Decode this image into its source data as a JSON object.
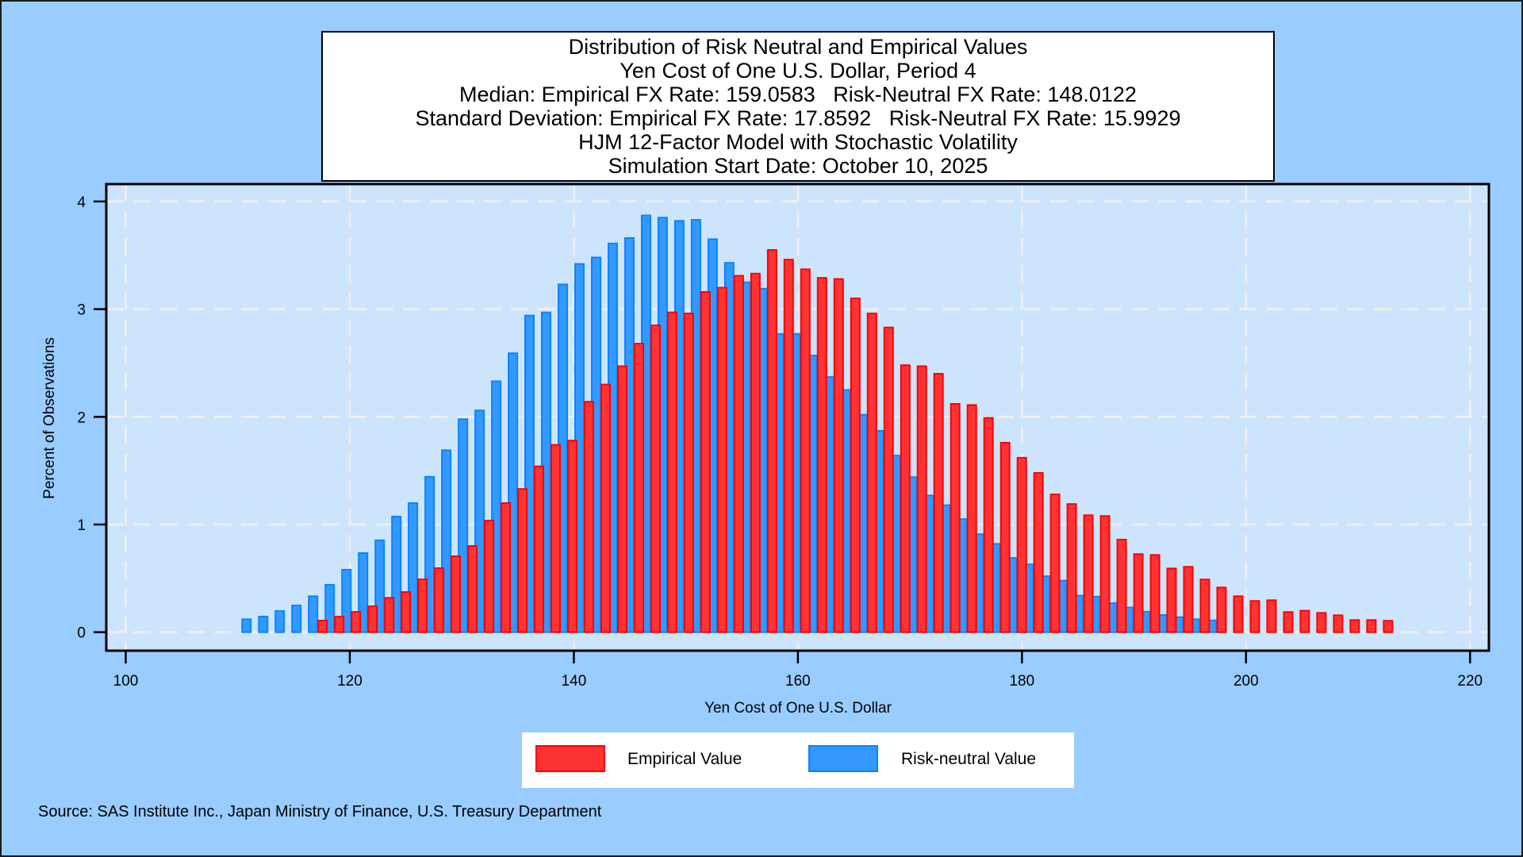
{
  "colors": {
    "background": "#99CCFF",
    "plot_background": "#CCE5FC",
    "grid": "#EEEEEE",
    "empirical_fill": "#FF3333",
    "empirical_border": "#FF0000",
    "risk_neutral_fill": "#3399FF",
    "risk_neutral_border": "#0A84FF"
  },
  "title_lines": [
    "Distribution of Risk Neutral and Empirical Values",
    "Yen Cost of One U.S. Dollar, Period 4",
    "Median: Empirical FX Rate: 159.0583   Risk-Neutral FX Rate: 148.0122",
    "Standard Deviation: Empirical FX Rate: 17.8592   Risk-Neutral FX Rate: 15.9929",
    "HJM 12-Factor Model with Stochastic Volatility",
    "Simulation Start Date: October 10, 2025"
  ],
  "legend": {
    "items": [
      {
        "label": "Empirical Value"
      },
      {
        "label": "Risk-neutral Value"
      }
    ]
  },
  "source": "Source: SAS Institute Inc., Japan Ministry of Finance, U.S. Treasury Department",
  "chart_data": {
    "type": "bar",
    "title": "Distribution of Risk Neutral and Empirical Values",
    "subtitle": "Yen Cost of One U.S. Dollar, Period 4",
    "xlabel": "Yen Cost of One U.S. Dollar",
    "ylabel": "Percent of Observations",
    "xlim": [
      100,
      220
    ],
    "ylim": [
      0,
      4
    ],
    "xticks": [
      100,
      120,
      140,
      160,
      180,
      200,
      220
    ],
    "yticks": [
      0,
      1,
      2,
      3,
      4
    ],
    "grid": true,
    "legend_position": "bottom-center",
    "bin_start": 111.1,
    "bin_width": 1.486,
    "series": [
      {
        "name": "Risk-neutral Value",
        "first_bin": 0,
        "values": [
          0.12,
          0.145,
          0.197,
          0.248,
          0.334,
          0.44,
          0.58,
          0.735,
          0.853,
          1.074,
          1.199,
          1.443,
          1.69,
          1.978,
          2.059,
          2.33,
          2.59,
          2.94,
          2.97,
          3.23,
          3.42,
          3.48,
          3.61,
          3.66,
          3.87,
          3.85,
          3.82,
          3.83,
          3.65,
          3.43,
          3.25,
          3.19,
          2.77,
          2.77,
          2.57,
          2.37,
          2.25,
          2.02,
          1.87,
          1.64,
          1.44,
          1.27,
          1.18,
          1.05,
          0.91,
          0.82,
          0.69,
          0.63,
          0.52,
          0.48,
          0.34,
          0.33,
          0.27,
          0.23,
          0.19,
          0.16,
          0.14,
          0.12,
          0.11
        ]
      },
      {
        "name": "Empirical Value",
        "first_bin": 4,
        "values": [
          0.108,
          0.145,
          0.189,
          0.241,
          0.319,
          0.373,
          0.491,
          0.595,
          0.705,
          0.801,
          1.037,
          1.199,
          1.33,
          1.54,
          1.74,
          1.78,
          2.14,
          2.3,
          2.47,
          2.68,
          2.85,
          2.97,
          2.96,
          3.16,
          3.2,
          3.31,
          3.33,
          3.55,
          3.46,
          3.37,
          3.29,
          3.28,
          3.1,
          2.96,
          2.83,
          2.48,
          2.47,
          2.4,
          2.12,
          2.11,
          1.99,
          1.76,
          1.62,
          1.48,
          1.28,
          1.19,
          1.086,
          1.079,
          0.86,
          0.725,
          0.717,
          0.592,
          0.607,
          0.489,
          0.415,
          0.334,
          0.29,
          0.297,
          0.187,
          0.2,
          0.179,
          0.157,
          0.113,
          0.113,
          0.106
        ]
      }
    ]
  }
}
